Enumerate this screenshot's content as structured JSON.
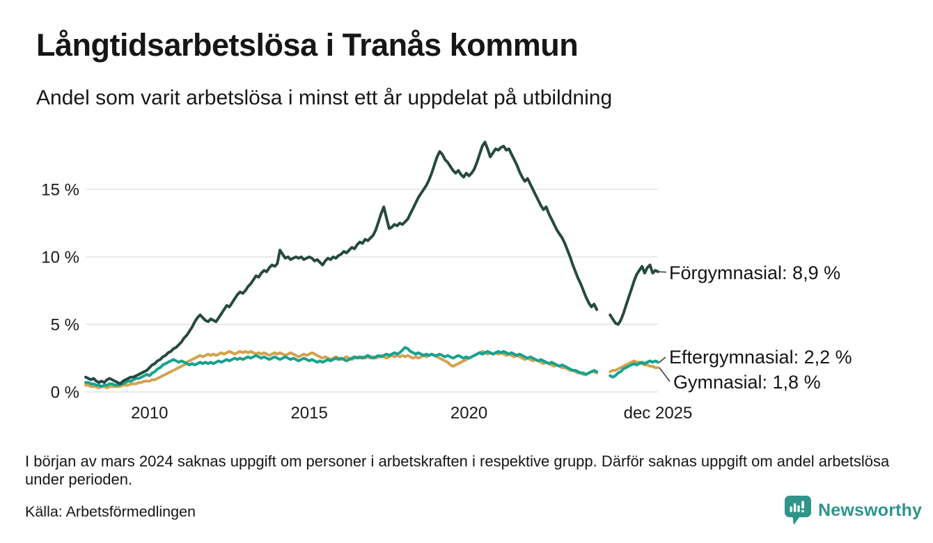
{
  "header": {
    "title": "Långtidsarbetslösa i Tranås kommun",
    "subtitle": "Andel som varit arbetslösa i minst ett år uppdelat på utbildning"
  },
  "chart_data": {
    "type": "line",
    "title": "Långtidsarbetslösa i Tranås kommun",
    "subtitle": "Andel som varit arbetslösa i minst ett år uppdelat på utbildning",
    "unit": "%",
    "frequency": "monthly",
    "start_year": 2008,
    "end_label": "dec 2025",
    "ylim": [
      0,
      19
    ],
    "grid": "horizontal",
    "gap_note": "data missing spring 2024",
    "yticks": [
      {
        "value": 0,
        "label": "0 %"
      },
      {
        "value": 5,
        "label": "5 %"
      },
      {
        "value": 10,
        "label": "10 %"
      },
      {
        "value": 15,
        "label": "15 %"
      }
    ],
    "xticks": [
      {
        "year": 2010,
        "label": "2010"
      },
      {
        "year": 2015,
        "label": "2015"
      },
      {
        "year": 2020,
        "label": "2020"
      },
      {
        "year": 2025.92,
        "label": "dec 2025"
      }
    ],
    "series": [
      {
        "name": "Förgymnasial",
        "last_value": "8,9 %",
        "label": "Förgymnasial: 8,9 %",
        "color": "#26493f",
        "values": [
          1.1,
          1.0,
          0.9,
          1.0,
          0.8,
          0.7,
          0.8,
          0.7,
          0.9,
          1.0,
          0.9,
          0.8,
          0.7,
          0.6,
          0.8,
          0.9,
          1.0,
          1.1,
          1.1,
          1.2,
          1.3,
          1.4,
          1.5,
          1.6,
          1.8,
          2.0,
          2.1,
          2.3,
          2.4,
          2.6,
          2.7,
          2.9,
          3.0,
          3.2,
          3.3,
          3.5,
          3.7,
          4.0,
          4.2,
          4.5,
          4.8,
          5.2,
          5.5,
          5.7,
          5.5,
          5.3,
          5.2,
          5.4,
          5.3,
          5.2,
          5.5,
          5.8,
          6.1,
          6.4,
          6.3,
          6.6,
          6.9,
          7.2,
          7.4,
          7.3,
          7.5,
          7.8,
          8.0,
          8.3,
          8.6,
          8.5,
          8.8,
          9.0,
          8.9,
          9.2,
          9.4,
          9.3,
          9.5,
          10.5,
          10.2,
          9.9,
          10.0,
          9.8,
          9.9,
          10.0,
          9.9,
          10.0,
          9.8,
          9.9,
          10.0,
          9.9,
          9.7,
          9.8,
          9.6,
          9.4,
          9.7,
          9.9,
          9.8,
          10.0,
          9.9,
          10.1,
          10.2,
          10.4,
          10.3,
          10.5,
          10.7,
          10.6,
          10.9,
          11.1,
          11.0,
          11.3,
          11.2,
          11.4,
          11.6,
          12.0,
          12.6,
          13.2,
          13.7,
          12.9,
          12.1,
          12.2,
          12.4,
          12.3,
          12.5,
          12.4,
          12.6,
          12.8,
          13.2,
          13.6,
          14.0,
          14.4,
          14.7,
          15.0,
          15.3,
          15.7,
          16.2,
          16.8,
          17.4,
          17.8,
          17.6,
          17.2,
          17.0,
          16.7,
          16.4,
          16.2,
          16.4,
          16.1,
          15.9,
          16.2,
          16.0,
          16.2,
          16.5,
          17.0,
          17.6,
          18.2,
          18.5,
          18.0,
          17.4,
          17.7,
          18.0,
          17.9,
          18.1,
          18.2,
          17.9,
          18.0,
          17.6,
          17.2,
          16.8,
          16.3,
          15.9,
          15.6,
          15.8,
          15.4,
          15.0,
          14.6,
          14.2,
          13.8,
          13.5,
          13.7,
          13.2,
          12.8,
          12.4,
          12.0,
          11.7,
          11.4,
          11.0,
          10.5,
          10.0,
          9.4,
          8.9,
          8.4,
          8.0,
          7.5,
          7.0,
          6.6,
          6.3,
          6.5,
          6.1,
          null,
          null,
          null,
          null,
          5.7,
          5.4,
          5.1,
          5.0,
          5.3,
          5.8,
          6.4,
          7.0,
          7.6,
          8.2,
          8.7,
          9.0,
          9.3,
          8.8,
          9.2,
          9.4,
          8.8,
          9.0,
          8.9
        ]
      },
      {
        "name": "Eftergymnasial",
        "last_value": "2,2 %",
        "label": "Eftergymnasial: 2,2 %",
        "color": "#16a28e",
        "values": [
          0.7,
          0.7,
          0.6,
          0.6,
          0.5,
          0.5,
          0.4,
          0.5,
          0.5,
          0.6,
          0.6,
          0.5,
          0.5,
          0.6,
          0.6,
          0.7,
          0.8,
          0.8,
          0.9,
          1.0,
          1.0,
          1.1,
          1.2,
          1.3,
          1.2,
          1.4,
          1.5,
          1.7,
          1.8,
          2.0,
          2.1,
          2.2,
          2.3,
          2.4,
          2.3,
          2.2,
          2.3,
          2.2,
          2.1,
          2.0,
          2.1,
          2.0,
          2.1,
          2.2,
          2.1,
          2.2,
          2.1,
          2.2,
          2.1,
          2.2,
          2.3,
          2.2,
          2.3,
          2.4,
          2.3,
          2.4,
          2.5,
          2.4,
          2.5,
          2.4,
          2.5,
          2.6,
          2.5,
          2.6,
          2.7,
          2.6,
          2.5,
          2.6,
          2.5,
          2.4,
          2.5,
          2.6,
          2.5,
          2.4,
          2.5,
          2.6,
          2.5,
          2.4,
          2.5,
          2.4,
          2.3,
          2.4,
          2.5,
          2.4,
          2.3,
          2.4,
          2.3,
          2.2,
          2.3,
          2.2,
          2.3,
          2.4,
          2.3,
          2.4,
          2.5,
          2.4,
          2.5,
          2.4,
          2.3,
          2.4,
          2.5,
          2.6,
          2.5,
          2.6,
          2.5,
          2.6,
          2.7,
          2.6,
          2.5,
          2.6,
          2.7,
          2.6,
          2.7,
          2.8,
          2.7,
          2.8,
          2.9,
          2.8,
          2.9,
          3.1,
          3.3,
          3.2,
          3.0,
          2.9,
          2.8,
          2.9,
          2.8,
          2.7,
          2.8,
          2.7,
          2.8,
          2.7,
          2.7,
          2.8,
          2.7,
          2.6,
          2.7,
          2.6,
          2.5,
          2.6,
          2.7,
          2.6,
          2.5,
          2.6,
          2.5,
          2.6,
          2.7,
          2.8,
          2.9,
          2.8,
          2.9,
          3.0,
          2.9,
          2.8,
          2.9,
          3.0,
          2.9,
          3.0,
          2.9,
          2.8,
          2.9,
          2.8,
          2.7,
          2.8,
          2.7,
          2.6,
          2.5,
          2.6,
          2.5,
          2.4,
          2.3,
          2.4,
          2.3,
          2.2,
          2.1,
          2.2,
          2.1,
          2.0,
          1.9,
          2.0,
          1.9,
          1.8,
          1.7,
          1.6,
          1.6,
          1.5,
          1.4,
          1.4,
          1.3,
          1.4,
          1.5,
          1.6,
          1.5,
          null,
          null,
          null,
          null,
          1.2,
          1.1,
          1.2,
          1.4,
          1.5,
          1.7,
          1.8,
          1.9,
          2.0,
          2.1,
          2.0,
          2.1,
          2.2,
          2.1,
          2.2,
          2.3,
          2.2,
          2.3,
          2.2
        ]
      },
      {
        "name": "Gymnasial",
        "last_value": "1,8 %",
        "label": "Gymnasial: 1,8 %",
        "color": "#d2a24f",
        "values": [
          0.5,
          0.5,
          0.4,
          0.4,
          0.4,
          0.3,
          0.4,
          0.4,
          0.3,
          0.4,
          0.4,
          0.4,
          0.4,
          0.4,
          0.5,
          0.5,
          0.5,
          0.6,
          0.6,
          0.6,
          0.7,
          0.7,
          0.8,
          0.8,
          0.8,
          0.9,
          0.9,
          1.0,
          1.1,
          1.2,
          1.3,
          1.4,
          1.5,
          1.6,
          1.7,
          1.8,
          1.9,
          2.0,
          2.2,
          2.3,
          2.4,
          2.5,
          2.6,
          2.7,
          2.6,
          2.7,
          2.8,
          2.7,
          2.8,
          2.7,
          2.8,
          2.9,
          2.8,
          2.9,
          3.0,
          2.9,
          2.8,
          2.9,
          3.0,
          2.9,
          3.0,
          2.9,
          3.0,
          2.9,
          2.8,
          2.9,
          2.8,
          2.9,
          2.8,
          2.7,
          2.8,
          2.9,
          2.8,
          2.9,
          2.8,
          2.7,
          2.8,
          2.9,
          2.8,
          2.7,
          2.6,
          2.7,
          2.8,
          2.7,
          2.8,
          2.9,
          2.8,
          2.7,
          2.6,
          2.5,
          2.6,
          2.5,
          2.4,
          2.5,
          2.6,
          2.5,
          2.4,
          2.5,
          2.6,
          2.5,
          2.4,
          2.5,
          2.6,
          2.5,
          2.6,
          2.5,
          2.6,
          2.5,
          2.6,
          2.5,
          2.6,
          2.7,
          2.6,
          2.5,
          2.6,
          2.7,
          2.6,
          2.7,
          2.6,
          2.7,
          2.6,
          2.7,
          2.6,
          2.5,
          2.6,
          2.5,
          2.6,
          2.7,
          2.6,
          2.7,
          2.8,
          2.7,
          2.6,
          2.5,
          2.4,
          2.3,
          2.2,
          2.0,
          1.9,
          2.0,
          2.1,
          2.2,
          2.3,
          2.4,
          2.5,
          2.6,
          2.7,
          2.8,
          2.9,
          3.0,
          2.9,
          2.8,
          2.9,
          2.8,
          2.9,
          2.8,
          2.9,
          2.8,
          2.7,
          2.8,
          2.7,
          2.6,
          2.7,
          2.6,
          2.5,
          2.4,
          2.5,
          2.4,
          2.3,
          2.4,
          2.3,
          2.2,
          2.1,
          2.2,
          2.1,
          2.0,
          1.9,
          2.0,
          1.9,
          1.8,
          1.8,
          1.7,
          1.6,
          1.6,
          1.5,
          1.4,
          1.4,
          1.3,
          1.3,
          1.4,
          1.5,
          1.5,
          1.4,
          null,
          null,
          null,
          null,
          1.5,
          1.6,
          1.6,
          1.7,
          1.8,
          1.9,
          2.0,
          2.1,
          2.2,
          2.3,
          2.2,
          2.2,
          2.1,
          2.0,
          2.0,
          1.9,
          1.9,
          1.8,
          1.8
        ]
      }
    ],
    "legend_position": "right-end-labels"
  },
  "footnote": "I början av mars 2024 saknas uppgift om personer i arbetskraften i respektive grupp. Därför saknas uppgift om andel arbetslösa under perioden.",
  "source": "Källa: Arbetsförmedlingen",
  "branding": {
    "logo_text": "Newsworthy",
    "logo_color": "#2f948a"
  }
}
